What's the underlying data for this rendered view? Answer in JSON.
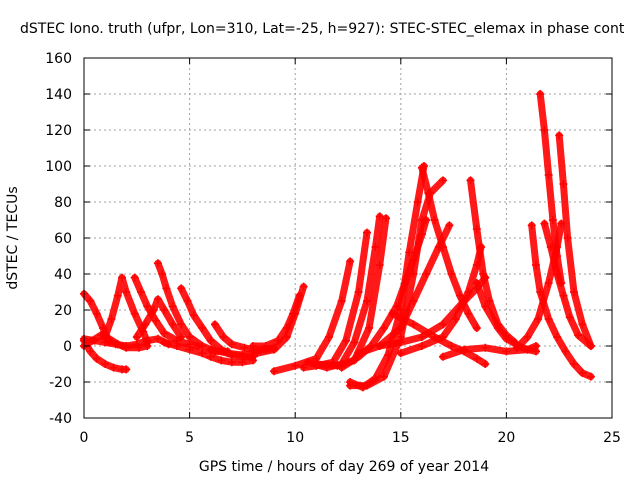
{
  "chart_data": {
    "type": "scatter",
    "title": "dSTEC Iono. truth (ufpr, Lon=310, Lat=-25, h=927): STEC-STEC_elemax in phase cont",
    "xlabel": "GPS time / hours of day 269 of year 2014",
    "ylabel": "dSTEC  / TECUs",
    "xlim": [
      0,
      25
    ],
    "ylim": [
      -40,
      160
    ],
    "x_ticks": [
      0,
      5,
      10,
      15,
      20,
      25
    ],
    "y_ticks": [
      -40,
      -20,
      0,
      20,
      40,
      60,
      80,
      100,
      120,
      140,
      160
    ],
    "grid": true,
    "marker": "plus",
    "series_color": "#ff0000",
    "series": [
      {
        "x": [
          0.0,
          0.3,
          0.6,
          1.0,
          1.4,
          1.8,
          2.0
        ],
        "y": [
          3,
          -3,
          -7,
          -10,
          -12,
          -13,
          -13
        ]
      },
      {
        "x": [
          0.0,
          0.4,
          0.8,
          1.2,
          1.6,
          2.0,
          2.6,
          3.0
        ],
        "y": [
          0,
          3,
          6,
          4,
          1,
          -1,
          -1,
          0
        ]
      },
      {
        "x": [
          0.0,
          0.3,
          0.6,
          0.9,
          1.2
        ],
        "y": [
          29,
          25,
          18,
          10,
          2
        ]
      },
      {
        "x": [
          0.0,
          0.5,
          1.0,
          1.5,
          2.0,
          2.5,
          3.0,
          3.5,
          4.0
        ],
        "y": [
          4,
          3,
          2,
          1,
          0,
          1,
          3,
          4,
          1
        ]
      },
      {
        "x": [
          1.0,
          1.3,
          1.6,
          1.8,
          2.0,
          2.4,
          2.8,
          3.0
        ],
        "y": [
          5,
          15,
          28,
          38,
          30,
          18,
          8,
          2
        ]
      },
      {
        "x": [
          2.4,
          2.7,
          3.0,
          3.4,
          3.8,
          4.4,
          5.0,
          5.4
        ],
        "y": [
          38,
          30,
          22,
          14,
          7,
          3,
          1,
          0
        ]
      },
      {
        "x": [
          2.5,
          2.9,
          3.3,
          3.5,
          3.8,
          4.2,
          4.6
        ],
        "y": [
          5,
          12,
          20,
          26,
          20,
          12,
          5
        ]
      },
      {
        "x": [
          3.5,
          3.7,
          3.9,
          4.2,
          4.6,
          5.0,
          5.6,
          6.2,
          6.8
        ],
        "y": [
          46,
          40,
          32,
          22,
          12,
          5,
          0,
          -3,
          -3
        ]
      },
      {
        "x": [
          4.6,
          4.9,
          5.2,
          5.6,
          6.0,
          6.5,
          7.0,
          7.6,
          8.0
        ],
        "y": [
          32,
          25,
          17,
          10,
          3,
          -2,
          -5,
          -6,
          -6
        ]
      },
      {
        "x": [
          3.8,
          4.4,
          5.0,
          5.6,
          6.0,
          6.5,
          7.0,
          7.5,
          8.0
        ],
        "y": [
          2,
          0,
          -2,
          -4,
          -6,
          -8,
          -9,
          -9,
          -8
        ]
      },
      {
        "x": [
          6.2,
          6.6,
          7.0,
          7.6,
          8.0,
          8.6,
          9.0
        ],
        "y": [
          12,
          5,
          1,
          -1,
          -2,
          -2,
          -1
        ]
      },
      {
        "x": [
          6.0,
          6.8,
          7.5,
          8.2,
          9.0,
          9.6,
          10.0,
          10.4
        ],
        "y": [
          -2,
          -4,
          -5,
          -4,
          -2,
          5,
          18,
          33
        ]
      },
      {
        "x": [
          8.0,
          8.6,
          9.2,
          9.6,
          9.9,
          10.2
        ],
        "y": [
          0,
          0,
          3,
          10,
          18,
          28
        ]
      },
      {
        "x": [
          9.0,
          10.0,
          11.0,
          11.6,
          12.2,
          12.6
        ],
        "y": [
          -14,
          -11,
          -7,
          5,
          25,
          47
        ]
      },
      {
        "x": [
          10.4,
          11.0,
          11.8,
          12.4,
          13.0,
          13.4
        ],
        "y": [
          -12,
          -11,
          -9,
          3,
          30,
          63
        ]
      },
      {
        "x": [
          10.6,
          11.5,
          12.2,
          12.8,
          13.4,
          13.8,
          14.0
        ],
        "y": [
          -9,
          -12,
          -10,
          2,
          25,
          55,
          72
        ]
      },
      {
        "x": [
          11.0,
          12.0,
          12.8,
          13.5,
          14.0,
          14.3
        ],
        "y": [
          -10,
          -11,
          -8,
          10,
          45,
          71
        ]
      },
      {
        "x": [
          12.6,
          13.2,
          13.8,
          14.4,
          15.0,
          15.4,
          15.8,
          16.1
        ],
        "y": [
          -20,
          -23,
          -18,
          -5,
          20,
          52,
          80,
          100
        ]
      },
      {
        "x": [
          12.6,
          13.4,
          14.2,
          15.0,
          15.6,
          16.0,
          16.4,
          17.0
        ],
        "y": [
          -22,
          -22,
          -17,
          5,
          40,
          70,
          85,
          92
        ]
      },
      {
        "x": [
          12.2,
          13.0,
          13.6,
          14.2,
          14.8,
          15.2,
          15.6,
          16.0,
          16.2
        ],
        "y": [
          -12,
          -6,
          0,
          10,
          22,
          35,
          48,
          62,
          70
        ]
      },
      {
        "x": [
          13.0,
          14.0,
          15.0,
          15.6,
          16.2,
          16.8,
          17.3
        ],
        "y": [
          -4,
          0,
          10,
          25,
          40,
          55,
          67
        ]
      },
      {
        "x": [
          16.0,
          16.3,
          16.6,
          17.0,
          17.4,
          17.8,
          18.2,
          18.6
        ],
        "y": [
          99,
          85,
          70,
          55,
          40,
          28,
          18,
          10
        ]
      },
      {
        "x": [
          14.0,
          15.0,
          16.0,
          17.0,
          18.0,
          18.6,
          19.0
        ],
        "y": [
          0,
          2,
          5,
          12,
          25,
          32,
          38
        ]
      },
      {
        "x": [
          14.6,
          15.6,
          16.6,
          17.4,
          18.0,
          18.6,
          19.0
        ],
        "y": [
          18,
          12,
          5,
          0,
          -3,
          -7,
          -10
        ]
      },
      {
        "x": [
          18.3,
          18.6,
          18.9,
          19.2,
          19.6,
          20.0,
          20.4
        ],
        "y": [
          92,
          65,
          40,
          25,
          12,
          6,
          2
        ]
      },
      {
        "x": [
          15.0,
          16.0,
          17.0,
          17.6,
          18.2,
          18.6,
          18.8
        ],
        "y": [
          -4,
          0,
          5,
          15,
          30,
          45,
          55
        ]
      },
      {
        "x": [
          18.6,
          19.0,
          19.6,
          20.0,
          20.6,
          21.0,
          21.4
        ],
        "y": [
          35,
          22,
          10,
          4,
          0,
          -2,
          -3
        ]
      },
      {
        "x": [
          17.0,
          18.0,
          19.0,
          20.0,
          21.0,
          21.4
        ],
        "y": [
          -6,
          -2,
          -1,
          -3,
          -2,
          0
        ]
      },
      {
        "x": [
          21.2,
          21.4,
          21.6,
          22.0,
          22.4,
          22.8,
          23.2,
          23.6,
          24.0
        ],
        "y": [
          67,
          45,
          30,
          15,
          5,
          -3,
          -10,
          -15,
          -17
        ]
      },
      {
        "x": [
          21.6,
          21.8,
          22.0,
          22.2,
          22.4,
          22.6
        ],
        "y": [
          140,
          120,
          95,
          70,
          50,
          35
        ]
      },
      {
        "x": [
          21.8,
          22.1,
          22.4,
          22.7,
          23.0,
          23.4,
          24.0
        ],
        "y": [
          68,
          55,
          40,
          28,
          16,
          6,
          0
        ]
      },
      {
        "x": [
          22.5,
          22.7,
          22.9,
          23.2,
          23.6,
          24.0
        ],
        "y": [
          117,
          90,
          60,
          30,
          12,
          0
        ]
      },
      {
        "x": [
          20.5,
          21.0,
          21.5,
          22.0,
          22.4,
          22.6
        ],
        "y": [
          -1,
          5,
          15,
          35,
          55,
          68
        ]
      }
    ]
  }
}
